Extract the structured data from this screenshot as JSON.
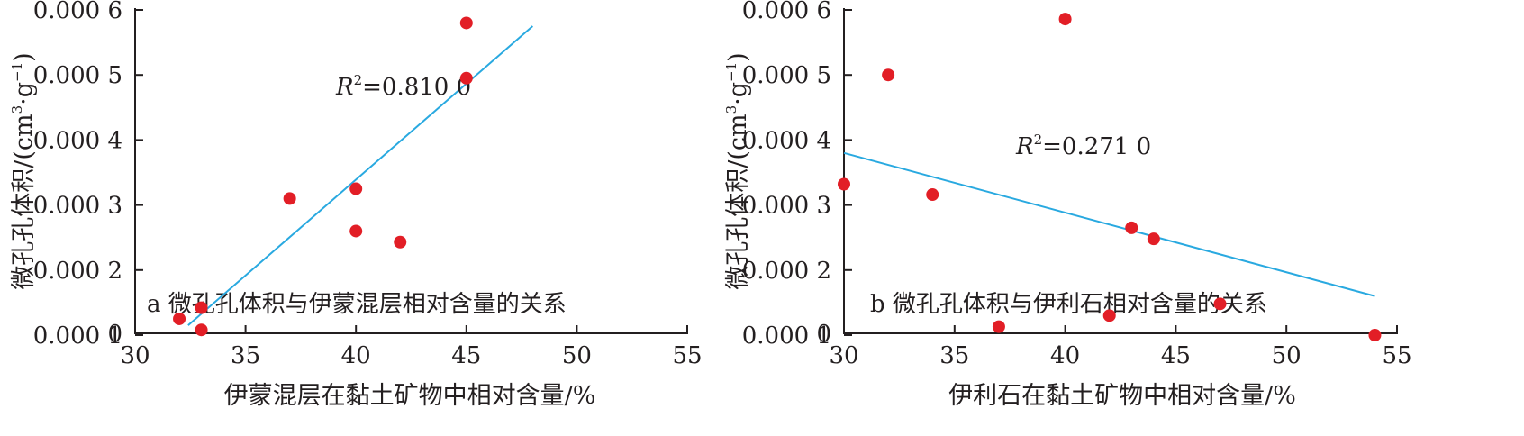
{
  "chart_data": [
    {
      "type": "scatter",
      "panel_label": "a 微孔孔体积与伊蒙混层相对含量的关系",
      "xlabel": "伊蒙混层在黏土矿物中相对含量/%",
      "ylabel": "微孔孔体积/(cm³·g⁻¹)",
      "ylabel_parts": {
        "main": "微孔孔体积/(cm",
        "exp1": "3",
        "mid": "·g",
        "exp2": "−1",
        "end": ")"
      },
      "xlim": [
        30,
        55
      ],
      "ylim": [
        0.0001,
        0.0006
      ],
      "x_ticks": [
        30,
        35,
        40,
        45,
        50,
        55
      ],
      "x_tick_labels": [
        "30",
        "35",
        "40",
        "45",
        "50",
        "55"
      ],
      "y_ticks": [
        0.0001,
        0.0002,
        0.0003,
        0.0004,
        0.0005,
        0.0006
      ],
      "y_tick_labels": [
        "0.000 1",
        "0.000 2",
        "0.000 3",
        "0.000 4",
        "0.000 5",
        "0.000 6"
      ],
      "axis_origin_label": "0",
      "points": [
        {
          "x": 32,
          "y": 0.000125
        },
        {
          "x": 33,
          "y": 0.000142
        },
        {
          "x": 33,
          "y": 0.000108
        },
        {
          "x": 37,
          "y": 0.00031
        },
        {
          "x": 40,
          "y": 0.000325
        },
        {
          "x": 40,
          "y": 0.00026
        },
        {
          "x": 42,
          "y": 0.000243
        },
        {
          "x": 45,
          "y": 0.000495
        },
        {
          "x": 45,
          "y": 0.00058
        }
      ],
      "trendline": {
        "x": [
          32.4,
          48
        ],
        "y": [
          0.000115,
          0.000575
        ]
      },
      "r2_prefix": "R",
      "r2_sup": "2",
      "r2_value": "=0.810 0",
      "marker_color": "#e21e26",
      "line_color": "#29a9e0",
      "grid": false
    },
    {
      "type": "scatter",
      "panel_label": "b 微孔孔体积与伊利石相对含量的关系",
      "xlabel": "伊利石在黏土矿物中相对含量/%",
      "ylabel": "微孔孔体积/(cm³·g⁻¹)",
      "ylabel_parts": {
        "main": "微孔孔体积/(cm",
        "exp1": "3",
        "mid": "·g",
        "exp2": "−1",
        "end": ")"
      },
      "xlim": [
        30,
        55
      ],
      "ylim": [
        0.0001,
        0.0006
      ],
      "x_ticks": [
        30,
        35,
        40,
        45,
        50,
        55
      ],
      "x_tick_labels": [
        "30",
        "35",
        "40",
        "45",
        "50",
        "55"
      ],
      "y_ticks": [
        0.0001,
        0.0002,
        0.0003,
        0.0004,
        0.0005,
        0.0006
      ],
      "y_tick_labels": [
        "0.000 1",
        "0.000 2",
        "0.000 3",
        "0.000 4",
        "0.000 5",
        "0.000 6"
      ],
      "axis_origin_label": "0",
      "points": [
        {
          "x": 30,
          "y": 0.000332
        },
        {
          "x": 32,
          "y": 0.0005
        },
        {
          "x": 34,
          "y": 0.000316
        },
        {
          "x": 37,
          "y": 0.000113
        },
        {
          "x": 40,
          "y": 0.000586
        },
        {
          "x": 42,
          "y": 0.00013
        },
        {
          "x": 43,
          "y": 0.000265
        },
        {
          "x": 44,
          "y": 0.000248
        },
        {
          "x": 47,
          "y": 0.000148
        },
        {
          "x": 54,
          "y": 0.0001
        }
      ],
      "trendline": {
        "x": [
          30,
          54
        ],
        "y": [
          0.00038,
          0.00016
        ]
      },
      "r2_prefix": "R",
      "r2_sup": "2",
      "r2_value": "=0.271 0",
      "marker_color": "#e21e26",
      "line_color": "#29a9e0",
      "grid": false
    }
  ]
}
